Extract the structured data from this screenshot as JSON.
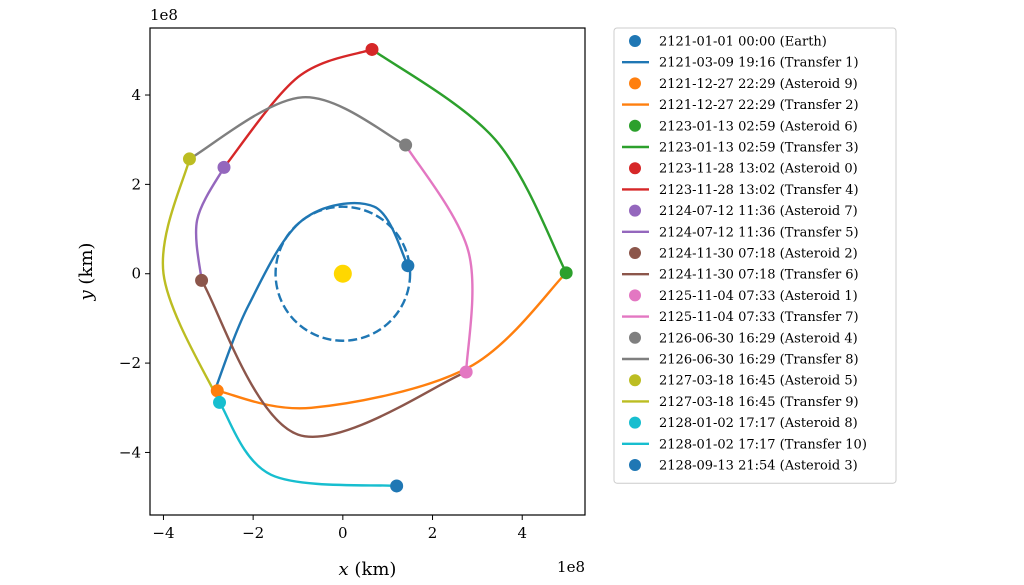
{
  "chart_data": {
    "type": "line",
    "xlabel_var": "x",
    "xlabel_unit": " (km)",
    "ylabel_var": "y",
    "ylabel_unit": " (km)",
    "x_offset_label": "1e8",
    "y_offset_label": "1e8",
    "xlim": [
      -4.3,
      5.4
    ],
    "ylim": [
      -5.4,
      5.5
    ],
    "xticks": [
      -4,
      -2,
      0,
      2,
      4
    ],
    "yticks": [
      -4,
      -2,
      0,
      2,
      4
    ],
    "xtick_labels": [
      "−4",
      "−2",
      "0",
      "2",
      "4"
    ],
    "ytick_labels": [
      "−4",
      "−2",
      "0",
      "2",
      "4"
    ],
    "grid": false,
    "legend_placement": "outside-right",
    "sun": {
      "x": 0,
      "y": 0,
      "color": "#ffd700"
    },
    "earth_orbit": {
      "radius": 1.5,
      "color": "#1f77b4",
      "style": "dashed"
    },
    "series": [
      {
        "name": "2121-01-01 00:00 (Earth)",
        "kind": "marker",
        "color": "#1f77b4",
        "x": 1.45,
        "y": 0.18
      },
      {
        "name": "2121-03-09 19:16 (Transfer 1)",
        "kind": "line",
        "color": "#1f77b4",
        "points": [
          [
            1.45,
            0.18
          ],
          [
            0.7,
            1.5
          ],
          [
            -0.9,
            1.2
          ],
          [
            -2.1,
            -0.7
          ],
          [
            -2.85,
            -2.6
          ]
        ]
      },
      {
        "name": "2121-12-27 22:29 (Asteroid 9)",
        "kind": "marker",
        "color": "#ff7f0e",
        "x": -2.8,
        "y": -2.62
      },
      {
        "name": "2121-12-27 22:29 (Transfer 2)",
        "kind": "line",
        "color": "#ff7f0e",
        "points": [
          [
            -2.8,
            -2.62
          ],
          [
            -0.7,
            -3.0
          ],
          [
            2.8,
            -2.1
          ],
          [
            4.98,
            0.02
          ]
        ]
      },
      {
        "name": "2123-01-13 02:59 (Asteroid 6)",
        "kind": "marker",
        "color": "#2ca02c",
        "x": 4.98,
        "y": 0.02
      },
      {
        "name": "2123-01-13 02:59 (Transfer 3)",
        "kind": "line",
        "color": "#2ca02c",
        "points": [
          [
            4.98,
            0.02
          ],
          [
            3.4,
            3.0
          ],
          [
            0.65,
            5.02
          ]
        ]
      },
      {
        "name": "2123-11-28 13:02 (Asteroid 0)",
        "kind": "marker",
        "color": "#d62728",
        "x": 0.65,
        "y": 5.02
      },
      {
        "name": "2123-11-28 13:02 (Transfer 4)",
        "kind": "line",
        "color": "#d62728",
        "points": [
          [
            0.65,
            5.02
          ],
          [
            -1.0,
            4.4
          ],
          [
            -2.65,
            2.38
          ]
        ]
      },
      {
        "name": "2124-07-12 11:36 (Asteroid 7)",
        "kind": "marker",
        "color": "#9467bd",
        "x": -2.65,
        "y": 2.38
      },
      {
        "name": "2124-07-12 11:36 (Transfer 5)",
        "kind": "line",
        "color": "#9467bd",
        "points": [
          [
            -2.65,
            2.38
          ],
          [
            -3.25,
            1.2
          ],
          [
            -3.15,
            -0.15
          ]
        ]
      },
      {
        "name": "2124-11-30 07:18 (Asteroid 2)",
        "kind": "marker",
        "color": "#8c564b",
        "x": -3.15,
        "y": -0.15
      },
      {
        "name": "2124-11-30 07:18 (Transfer 6)",
        "kind": "line",
        "color": "#8c564b",
        "points": [
          [
            -3.15,
            -0.15
          ],
          [
            -1.0,
            -3.6
          ],
          [
            2.75,
            -2.2
          ]
        ]
      },
      {
        "name": "2125-11-04 07:33 (Asteroid 1)",
        "kind": "marker",
        "color": "#e377c2",
        "x": 2.75,
        "y": -2.2
      },
      {
        "name": "2125-11-04 07:33 (Transfer 7)",
        "kind": "line",
        "color": "#e377c2",
        "points": [
          [
            2.75,
            -2.2
          ],
          [
            2.8,
            0.5
          ],
          [
            1.4,
            2.88
          ]
        ]
      },
      {
        "name": "2126-06-30 16:29 (Asteroid 4)",
        "kind": "marker",
        "color": "#7f7f7f",
        "x": 1.4,
        "y": 2.88
      },
      {
        "name": "2126-06-30 16:29 (Transfer 8)",
        "kind": "line",
        "color": "#7f7f7f",
        "points": [
          [
            1.4,
            2.88
          ],
          [
            -0.9,
            3.95
          ],
          [
            -3.42,
            2.57
          ]
        ]
      },
      {
        "name": "2127-03-18 16:45 (Asteroid 5)",
        "kind": "marker",
        "color": "#bcbd22",
        "x": -3.42,
        "y": 2.57
      },
      {
        "name": "2127-03-18 16:45 (Transfer 9)",
        "kind": "line",
        "color": "#bcbd22",
        "points": [
          [
            -3.42,
            2.57
          ],
          [
            -4.0,
            0.0
          ],
          [
            -2.75,
            -2.88
          ]
        ]
      },
      {
        "name": "2128-01-02 17:17 (Asteroid 8)",
        "kind": "marker",
        "color": "#17becf",
        "x": -2.75,
        "y": -2.88
      },
      {
        "name": "2128-01-02 17:17 (Transfer 10)",
        "kind": "line",
        "color": "#17becf",
        "points": [
          [
            -2.75,
            -2.88
          ],
          [
            -1.6,
            -4.5
          ],
          [
            1.2,
            -4.75
          ]
        ]
      },
      {
        "name": "2128-09-13 21:54 (Asteroid 3)",
        "kind": "marker",
        "color": "#1f77b4",
        "x": 1.2,
        "y": -4.75
      }
    ]
  }
}
